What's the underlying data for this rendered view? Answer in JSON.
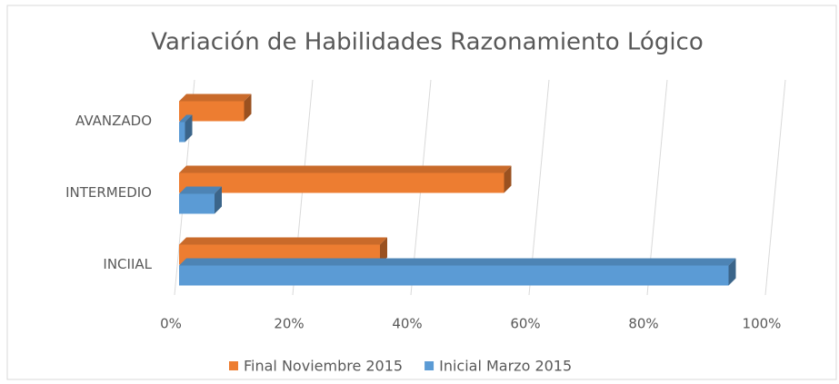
{
  "chart_data": {
    "type": "bar3d_h",
    "title": "Variación de Habilidades Razonamiento Lógico",
    "categories": [
      "INCIIAL",
      "INTERMEDIO",
      "AVANZADO"
    ],
    "series": [
      {
        "name": "Final Noviembre 2015",
        "color": "#ed7d31",
        "values": [
          34,
          55,
          11
        ]
      },
      {
        "name": "Inicial Marzo 2015",
        "color": "#5b9bd5",
        "values": [
          93,
          6,
          1
        ]
      }
    ],
    "xlim": [
      0,
      100
    ],
    "xticks": [
      {
        "value": 0,
        "label": "0%"
      },
      {
        "value": 20,
        "label": "20%"
      },
      {
        "value": 40,
        "label": "40%"
      },
      {
        "value": 60,
        "label": "60%"
      },
      {
        "value": 80,
        "label": "80%"
      },
      {
        "value": 100,
        "label": "100%"
      }
    ],
    "grid": true
  }
}
